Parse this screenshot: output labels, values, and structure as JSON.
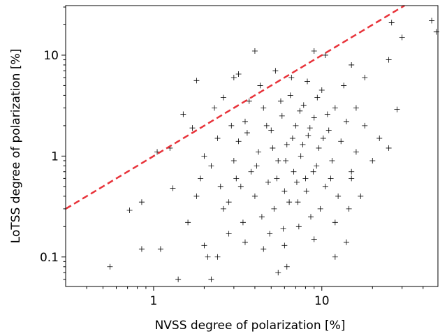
{
  "chart_data": {
    "type": "scatter",
    "xlabel": "NVSS degree of polarization [%]",
    "ylabel": "LoTSS degree of polarization [%]",
    "xscale": "log",
    "yscale": "log",
    "xlim": [
      0.3,
      49
    ],
    "ylim": [
      0.051,
      31
    ],
    "xticks": [
      1,
      10
    ],
    "yticks": [
      0.1,
      1,
      10
    ],
    "xminorticks": [
      0.4,
      0.5,
      0.6,
      0.7,
      0.8,
      0.9,
      2,
      3,
      4,
      5,
      6,
      7,
      8,
      9,
      20,
      30,
      40
    ],
    "yminorticks": [
      0.06,
      0.07,
      0.08,
      0.09,
      0.2,
      0.3,
      0.4,
      0.5,
      0.6,
      0.7,
      0.8,
      0.9,
      2,
      3,
      4,
      5,
      6,
      7,
      8,
      9,
      20,
      30
    ],
    "color": "#000000",
    "x": [
      0.55,
      0.72,
      0.85,
      0.85,
      1.1,
      1.05,
      1.25,
      1.3,
      1.4,
      1.5,
      1.6,
      1.8,
      2.0,
      2.1,
      2.2,
      2.4,
      2.6,
      3.0,
      3.2,
      4.0,
      5.5,
      6.2,
      9,
      10.5,
      12,
      14,
      15,
      18,
      25,
      26,
      28,
      30,
      45,
      48,
      22,
      25,
      20,
      17,
      15,
      2.5,
      2.8,
      3,
      3.2,
      3.5,
      3.8,
      4,
      4.2,
      4.5,
      4.8,
      5,
      5.2,
      5.5,
      5.8,
      6,
      6.2,
      6.5,
      6.8,
      7,
      7.2,
      7.5,
      7.8,
      8,
      8.3,
      8.6,
      9,
      9.3,
      9.6,
      10,
      10.5,
      11,
      11.5,
      12,
      12.5,
      13,
      14,
      15,
      16,
      3.3,
      3.6,
      4.1,
      4.4,
      4.7,
      5.1,
      5.4,
      5.7,
      6.1,
      6.4,
      6.7,
      7.1,
      7.4,
      7.7,
      8.1,
      8.5,
      8.9,
      9.4,
      9.8,
      10.2,
      10.8,
      11.3,
      2.2,
      2.4,
      2.6,
      2.9,
      3.1,
      3.4,
      3.7,
      4.3,
      4.9,
      5.3,
      5.9,
      6.6,
      7.3,
      8.2,
      1.8,
      2,
      1.9,
      1.7,
      2.3,
      13.5,
      16,
      18,
      14.5,
      12,
      9,
      6,
      4.5,
      3.5,
      2.8
    ],
    "values": [
      0.08,
      0.29,
      0.35,
      0.12,
      0.12,
      1.1,
      1.2,
      0.48,
      0.06,
      2.6,
      0.22,
      5.6,
      0.13,
      0.1,
      0.06,
      0.1,
      3.8,
      6.0,
      6.5,
      11,
      0.07,
      0.08,
      11,
      10,
      0.1,
      0.14,
      8,
      6,
      9,
      21,
      2.9,
      15,
      22,
      17,
      1.5,
      1.2,
      0.9,
      0.4,
      0.6,
      0.5,
      0.35,
      0.9,
      1.4,
      2.2,
      0.7,
      0.4,
      1.1,
      3,
      0.55,
      1.8,
      0.3,
      0.9,
      2.5,
      0.45,
      1.3,
      4,
      0.7,
      2,
      0.35,
      1,
      3.2,
      0.6,
      1.6,
      0.25,
      2.4,
      0.8,
      1.2,
      4.5,
      0.5,
      1.8,
      0.9,
      3,
      0.4,
      1.4,
      2.2,
      0.7,
      1.1,
      0.5,
      1.7,
      0.8,
      0.25,
      2,
      1.2,
      0.6,
      3.5,
      0.9,
      0.35,
      1.5,
      0.55,
      2.8,
      1.3,
      0.45,
      1.9,
      0.7,
      3.8,
      0.3,
      1.5,
      2.6,
      0.6,
      0.8,
      1.5,
      0.3,
      2,
      0.6,
      0.22,
      3.5,
      5,
      0.17,
      7,
      0.19,
      6,
      0.2,
      5.5,
      0.4,
      1,
      0.6,
      1.9,
      3,
      5,
      3,
      2,
      0.3,
      0.22,
      0.15,
      0.13,
      0.12,
      0.14,
      0.17
    ],
    "reference_line": {
      "x": [
        0.3,
        31
      ],
      "values": [
        0.3,
        31
      ],
      "color": "#e8333a",
      "dashed": true
    }
  }
}
